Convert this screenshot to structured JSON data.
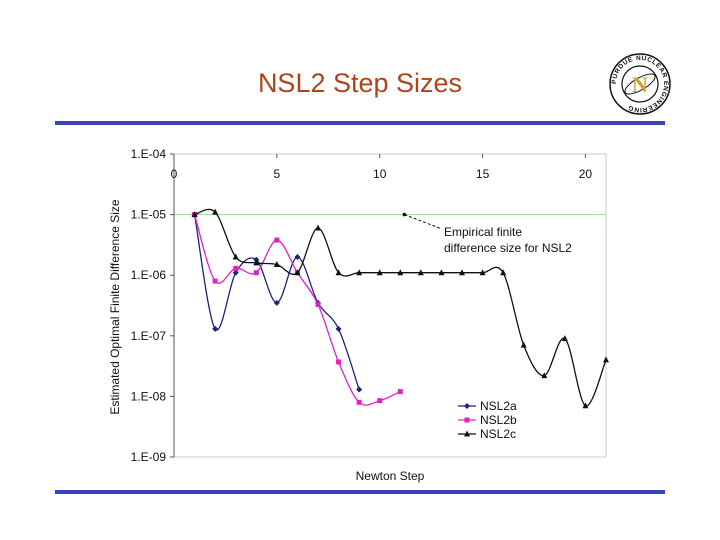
{
  "slide": {
    "title": "NSL2 Step Sizes"
  },
  "logo": {
    "outer_text": "PURDUE NUCLEAR ENGINEERING",
    "letter": "N",
    "icon": "purdue-nuclear-engineering-seal",
    "colors": {
      "ring": "#111111",
      "letter": "#c9a227"
    }
  },
  "colors": {
    "title": "#b0421c",
    "rule": "#3a43b5",
    "empirical_line": "#9bd39b"
  },
  "chart_data": {
    "type": "line",
    "xlabel": "Newton Step",
    "ylabel": "Estimated Optimal Finite Difference Size",
    "x_axis_position": "top",
    "xlim": [
      0,
      21
    ],
    "ylim": [
      1e-09,
      0.0001
    ],
    "y_scale": "log",
    "x_ticks": [
      "0",
      "5",
      "10",
      "15",
      "20"
    ],
    "y_ticks": [
      "1.E-04",
      "1.E-05",
      "1.E-06",
      "1.E-07",
      "1.E-08",
      "1.E-09"
    ],
    "legend_position": "bottom-right",
    "grid": false,
    "series": [
      {
        "name": "NSL2a",
        "color": "#1a237e",
        "marker": "diamond",
        "x": [
          1,
          2,
          3,
          4,
          5,
          6,
          7,
          8,
          9
        ],
        "y": [
          1e-05,
          1.3e-07,
          1.1e-06,
          1.8e-06,
          3.5e-07,
          2e-06,
          3.5e-07,
          1.3e-07,
          1.3e-08
        ]
      },
      {
        "name": "NSL2b",
        "color": "#e020c8",
        "marker": "square",
        "x": [
          1,
          2,
          3,
          4,
          5,
          6,
          7,
          8,
          9,
          10,
          11
        ],
        "y": [
          1e-05,
          8e-07,
          1.3e-06,
          1.1e-06,
          3.8e-06,
          1.1e-06,
          3.3e-07,
          3.7e-08,
          8e-09,
          8.5e-09,
          1.2e-08
        ]
      },
      {
        "name": "NSL2c",
        "color": "#111111",
        "marker": "triangle",
        "x": [
          1,
          2,
          3,
          4,
          5,
          6,
          7,
          8,
          9,
          10,
          11,
          12,
          13,
          14,
          15,
          16,
          17,
          18,
          19,
          20,
          21
        ],
        "y": [
          1e-05,
          1.1e-05,
          2e-06,
          1.6e-06,
          1.5e-06,
          1.1e-06,
          6e-06,
          1.1e-06,
          1.1e-06,
          1.1e-06,
          1.1e-06,
          1.1e-06,
          1.1e-06,
          1.1e-06,
          1.1e-06,
          1.1e-06,
          7e-08,
          2.2e-08,
          9e-08,
          7e-09,
          4e-08
        ]
      }
    ],
    "reference_line": {
      "y": 1e-05,
      "color": "#9bd39b"
    },
    "annotation": {
      "text_line1": "Empirical finite",
      "text_line2": "difference size for NSL2",
      "arrow_from_x": 11.2,
      "arrow_from_y": 1e-05
    }
  }
}
